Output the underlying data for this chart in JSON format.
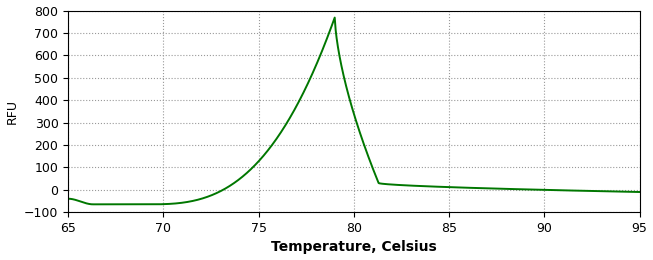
{
  "title": "",
  "xlabel": "Temperature, Celsius",
  "ylabel": "RFU",
  "xlim": [
    65,
    95
  ],
  "ylim": [
    -100,
    800
  ],
  "xticks": [
    65,
    70,
    75,
    80,
    85,
    90,
    95
  ],
  "yticks": [
    -100,
    0,
    100,
    200,
    300,
    400,
    500,
    600,
    700,
    800
  ],
  "line_color": "#007700",
  "line_width": 1.4,
  "bg_color": "#ffffff",
  "grid_color": "#999999",
  "xlabel_fontsize": 10,
  "ylabel_fontsize": 9,
  "tick_fontsize": 9,
  "xlabel_bold": true
}
